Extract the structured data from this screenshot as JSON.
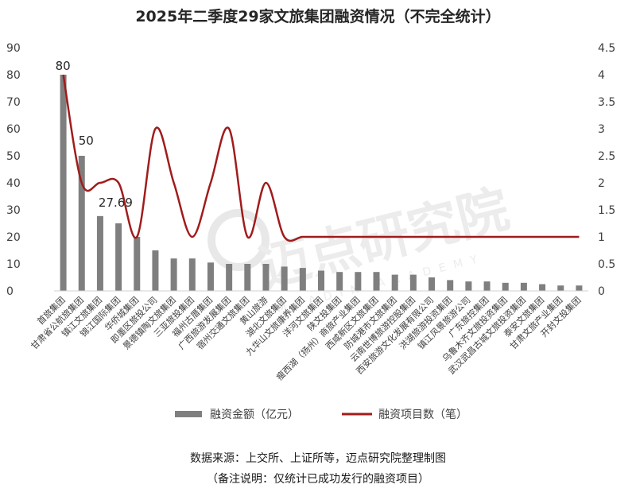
{
  "title": "2025年二季度29家文旅集团融资情况（不完全统计）",
  "source": "数据来源：上交所、上证所等，迈点研究院整理制图",
  "note": "（备注说明：仅统计已成功发行的融资项目）",
  "watermark": {
    "text": "迈点研究院",
    "subtext": "MEADIN ACADEMY"
  },
  "colors": {
    "bar": "#7f7f7f",
    "line": "#a01c1c",
    "axis": "#d0d0d0",
    "text": "#404040"
  },
  "chart_data": {
    "type": "bar",
    "categories": [
      "首旅集团",
      "甘肃省公航旅集团",
      "镇江文旅集团",
      "锦江国际集团",
      "华侨城集团",
      "即墨区旅投公司",
      "景德镇陶文旅集团",
      "三亚旅投集团",
      "福州古厝集团",
      "广西旅游发展集团",
      "宿州交通文旅集团",
      "黄山旅游",
      "湖北文旅集团",
      "九华山文旅康养集团",
      "洋河文旅集团",
      "陕文投集团",
      "瘦西湖（扬州）商旅产业集团",
      "西咸新区文旅集团",
      "防城港市文旅集团",
      "云南世博旅游控股集团",
      "西安旅游文化发展有限公司",
      "洪湖旅游投资集团",
      "镇江风景旅游公司",
      "广东旅控集团",
      "乌鲁木齐文旅投资集团",
      "武汉武昌古城文旅投资集团",
      "泰安文旅集团",
      "甘肃文旅产业集团",
      "开封文投集团"
    ],
    "series": [
      {
        "name": "融资金额（亿元）",
        "type": "bar",
        "axis": "left",
        "values": [
          80,
          50,
          27.69,
          25,
          20,
          15,
          12,
          12,
          10.5,
          10,
          10,
          10,
          9,
          8.5,
          7.5,
          7,
          7,
          7,
          6,
          6,
          5,
          4,
          3.5,
          3.5,
          3,
          3,
          2.5,
          2,
          2
        ]
      },
      {
        "name": "融资项目数（笔）",
        "type": "line",
        "axis": "right",
        "values": [
          4,
          2,
          2,
          2,
          1,
          3,
          2,
          1,
          2,
          3,
          1,
          2,
          1,
          1,
          1,
          1,
          1,
          1,
          1,
          1,
          1,
          1,
          1,
          1,
          1,
          1,
          1,
          1,
          1
        ]
      }
    ],
    "data_labels": [
      {
        "index": 0,
        "text": "80"
      },
      {
        "index": 1,
        "text": "50"
      },
      {
        "index": 2,
        "text": "27.69"
      }
    ],
    "y_left": {
      "min": 0,
      "max": 90,
      "ticks": [
        "0",
        "10",
        "20",
        "30",
        "40",
        "50",
        "60",
        "70",
        "80",
        "90"
      ]
    },
    "y_right": {
      "min": 0,
      "max": 4.5,
      "ticks": [
        "0",
        "0.5",
        "1",
        "1.5",
        "2",
        "2.5",
        "3",
        "3.5",
        "4",
        "4.5"
      ]
    },
    "legend_position": "bottom",
    "grid": false
  }
}
